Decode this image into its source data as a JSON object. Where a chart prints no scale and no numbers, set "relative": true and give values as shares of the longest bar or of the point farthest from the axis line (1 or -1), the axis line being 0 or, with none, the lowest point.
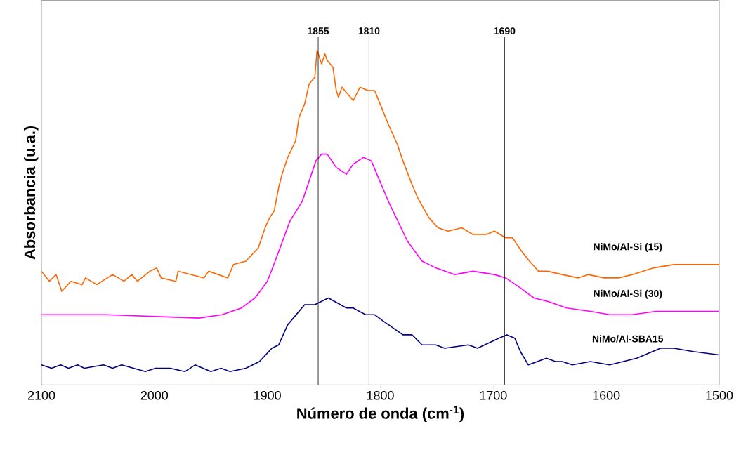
{
  "chart_data": {
    "type": "line",
    "relative": true,
    "xlabel": "Número de onda (cm$^{-1}$)",
    "ylabel": "Absorbancia (u.a.)",
    "xlim": [
      2100,
      1500
    ],
    "xticks": [
      2100,
      2000,
      1900,
      1800,
      1700,
      1600,
      1500
    ],
    "marker": "none",
    "line_style": "solid",
    "grid": false,
    "ref_lines": [
      {
        "axis": "x",
        "value": 1855,
        "label": "1855",
        "color": "#000000"
      },
      {
        "axis": "x",
        "value": 1810,
        "label": "1810",
        "color": "#000000"
      },
      {
        "axis": "x",
        "value": 1690,
        "label": "1690",
        "color": "#000000"
      }
    ],
    "series": [
      {
        "name": "NiMo/Al-Si (15)",
        "color": "#ff6600",
        "x": [
          2100,
          2093,
          2087,
          2082,
          2074,
          2064,
          2061,
          2051,
          2037,
          2027,
          2020,
          2015,
          2004,
          1998,
          1994,
          1981,
          1979,
          1956,
          1952,
          1935,
          1930,
          1919,
          1908,
          1902,
          1898,
          1894,
          1890,
          1887,
          1882,
          1875,
          1872,
          1867,
          1863,
          1858,
          1856,
          1852,
          1849,
          1847,
          1842,
          1839,
          1837,
          1834,
          1824,
          1818,
          1811,
          1805,
          1799,
          1793,
          1785,
          1780,
          1772,
          1767,
          1757,
          1749,
          1740,
          1728,
          1718,
          1706,
          1699,
          1689,
          1683,
          1675,
          1668,
          1660,
          1652,
          1639,
          1625,
          1616,
          1602,
          1589,
          1577,
          1558,
          1540,
          1525,
          1500
        ],
        "values": [
          0.34,
          0.31,
          0.33,
          0.28,
          0.31,
          0.3,
          0.32,
          0.3,
          0.33,
          0.31,
          0.33,
          0.31,
          0.34,
          0.35,
          0.32,
          0.31,
          0.34,
          0.32,
          0.34,
          0.32,
          0.36,
          0.37,
          0.41,
          0.47,
          0.5,
          0.52,
          0.59,
          0.63,
          0.68,
          0.73,
          0.8,
          0.84,
          0.9,
          0.92,
          1.0,
          0.96,
          0.99,
          0.97,
          0.95,
          0.88,
          0.86,
          0.89,
          0.85,
          0.89,
          0.88,
          0.88,
          0.83,
          0.78,
          0.72,
          0.67,
          0.6,
          0.56,
          0.5,
          0.47,
          0.46,
          0.47,
          0.45,
          0.45,
          0.46,
          0.44,
          0.44,
          0.4,
          0.37,
          0.34,
          0.34,
          0.33,
          0.32,
          0.33,
          0.32,
          0.32,
          0.33,
          0.35,
          0.36,
          0.36,
          0.36
        ]
      },
      {
        "name": "NiMo/Al-Si (30)",
        "color": "#ff00ff",
        "x": [
          2100,
          2043,
          1961,
          1940,
          1923,
          1911,
          1900,
          1892,
          1880,
          1869,
          1857,
          1852,
          1847,
          1839,
          1830,
          1824,
          1815,
          1808,
          1793,
          1776,
          1763,
          1751,
          1734,
          1718,
          1699,
          1689,
          1676,
          1664,
          1652,
          1635,
          1614,
          1597,
          1577,
          1556,
          1538,
          1519,
          1500
        ],
        "values": [
          0.21,
          0.21,
          0.2,
          0.21,
          0.23,
          0.26,
          0.31,
          0.38,
          0.49,
          0.55,
          0.67,
          0.69,
          0.69,
          0.65,
          0.63,
          0.66,
          0.68,
          0.67,
          0.55,
          0.43,
          0.37,
          0.35,
          0.33,
          0.34,
          0.33,
          0.32,
          0.29,
          0.26,
          0.25,
          0.23,
          0.22,
          0.21,
          0.21,
          0.22,
          0.22,
          0.22,
          0.22
        ]
      },
      {
        "name": "NiMo/Al-SBA15",
        "color": "#000080",
        "x": [
          2100,
          2091,
          2083,
          2076,
          2068,
          2062,
          2045,
          2037,
          2029,
          2008,
          1999,
          1992,
          1986,
          1973,
          1964,
          1950,
          1941,
          1933,
          1919,
          1907,
          1896,
          1890,
          1882,
          1867,
          1858,
          1846,
          1830,
          1824,
          1813,
          1805,
          1797,
          1780,
          1772,
          1763,
          1751,
          1743,
          1722,
          1714,
          1695,
          1688,
          1681,
          1676,
          1669,
          1653,
          1645,
          1639,
          1630,
          1614,
          1597,
          1585,
          1573,
          1552,
          1540,
          1523,
          1500
        ],
        "values": [
          0.06,
          0.05,
          0.06,
          0.05,
          0.06,
          0.05,
          0.06,
          0.05,
          0.06,
          0.04,
          0.05,
          0.05,
          0.05,
          0.04,
          0.06,
          0.04,
          0.05,
          0.04,
          0.05,
          0.07,
          0.11,
          0.12,
          0.18,
          0.24,
          0.24,
          0.26,
          0.23,
          0.23,
          0.21,
          0.21,
          0.19,
          0.15,
          0.15,
          0.12,
          0.12,
          0.11,
          0.12,
          0.11,
          0.14,
          0.15,
          0.14,
          0.1,
          0.06,
          0.08,
          0.07,
          0.07,
          0.06,
          0.07,
          0.06,
          0.07,
          0.08,
          0.11,
          0.11,
          0.1,
          0.09
        ]
      }
    ]
  }
}
